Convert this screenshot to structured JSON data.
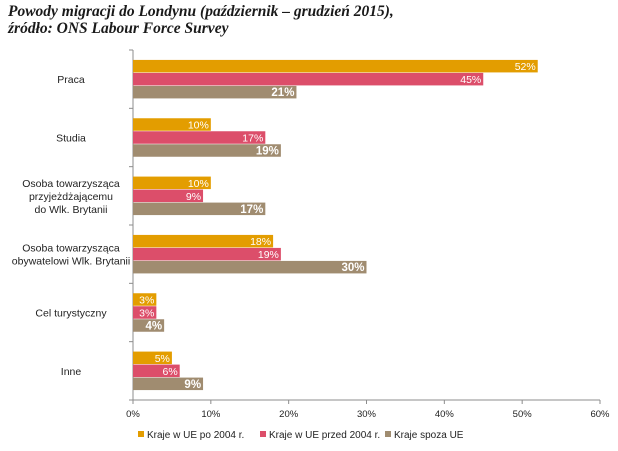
{
  "chart_data": {
    "type": "bar",
    "orientation": "horizontal",
    "title_lines": [
      "Powody migracji do Londynu (październik – grudzień 2015),",
      "źródło: ONS Labour Force Survey"
    ],
    "categories": [
      [
        "Praca"
      ],
      [
        "Studia"
      ],
      [
        "Osoba towarzysząca",
        "przyjeżdżającemu",
        "do Wlk. Brytanii"
      ],
      [
        "Osoba towarzysząca",
        "obywatelowi Wlk. Brytanii"
      ],
      [
        "Cel turystyczny"
      ],
      [
        "Inne"
      ]
    ],
    "series": [
      {
        "name": "Kraje w UE po 2004 r.",
        "color": "#e39d00",
        "values": [
          52,
          10,
          10,
          18,
          3,
          5
        ],
        "labels": [
          "52%",
          "10%",
          "10%",
          "18%",
          "3%",
          "5%"
        ]
      },
      {
        "name": "Kraje w UE przed 2004 r.",
        "color": "#dc4e6a",
        "values": [
          45,
          17,
          9,
          19,
          3,
          6
        ],
        "labels": [
          "45%",
          "17%",
          "9%",
          "19%",
          "3%",
          "6%"
        ]
      },
      {
        "name": "Kraje spoza UE",
        "color": "#a08c70",
        "values": [
          21,
          19,
          17,
          30,
          4,
          9
        ],
        "labels": [
          "21%",
          "19%",
          "17%",
          "30%",
          "4%",
          "9%"
        ]
      }
    ],
    "xlim": [
      0,
      60
    ],
    "xticks": [
      0,
      10,
      20,
      30,
      40,
      50,
      60
    ],
    "xtick_labels": [
      "0%",
      "10%",
      "20%",
      "30%",
      "40%",
      "50%",
      "60%"
    ],
    "grid": false,
    "legend_position": "bottom"
  }
}
